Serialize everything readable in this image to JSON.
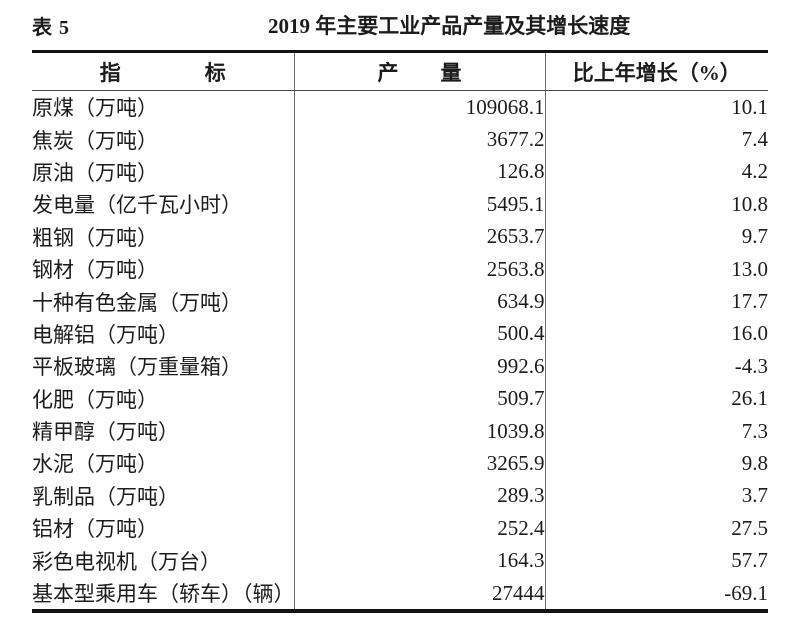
{
  "caption": {
    "table_label": "表 5",
    "title": "2019 年主要工业产品产量及其增长速度"
  },
  "table": {
    "columns": {
      "indicator": "指　　　　标",
      "output": "产　　量",
      "growth": "比上年增长（%）"
    },
    "rows": [
      {
        "indicator": "原煤（万吨）",
        "output": "109068.1",
        "growth": "10.1"
      },
      {
        "indicator": "焦炭（万吨）",
        "output": "3677.2",
        "growth": "7.4"
      },
      {
        "indicator": "原油（万吨）",
        "output": "126.8",
        "growth": "4.2"
      },
      {
        "indicator": "发电量（亿千瓦小时）",
        "output": "5495.1",
        "growth": "10.8"
      },
      {
        "indicator": "粗钢（万吨）",
        "output": "2653.7",
        "growth": "9.7"
      },
      {
        "indicator": "钢材（万吨）",
        "output": "2563.8",
        "growth": "13.0"
      },
      {
        "indicator": "十种有色金属（万吨）",
        "output": "634.9",
        "growth": "17.7"
      },
      {
        "indicator": "电解铝（万吨）",
        "output": "500.4",
        "growth": "16.0"
      },
      {
        "indicator": "平板玻璃（万重量箱）",
        "output": "992.6",
        "growth": "-4.3"
      },
      {
        "indicator": "化肥（万吨）",
        "output": "509.7",
        "growth": "26.1"
      },
      {
        "indicator": "精甲醇（万吨）",
        "output": "1039.8",
        "growth": "7.3"
      },
      {
        "indicator": "水泥（万吨）",
        "output": "3265.9",
        "growth": "9.8"
      },
      {
        "indicator": "乳制品（万吨）",
        "output": "289.3",
        "growth": "3.7"
      },
      {
        "indicator": "铝材（万吨）",
        "output": "252.4",
        "growth": "27.5"
      },
      {
        "indicator": "彩色电视机（万台）",
        "output": "164.3",
        "growth": "57.7"
      },
      {
        "indicator": "基本型乘用车（轿车）（辆）",
        "output": "27444",
        "growth": "-69.1"
      }
    ]
  },
  "colors": {
    "background": "#ffffff",
    "text": "#1c1c1c",
    "rule_heavy": "#121212",
    "rule_light": "#6e6e6e",
    "header_underline": "#4a4a4a"
  }
}
